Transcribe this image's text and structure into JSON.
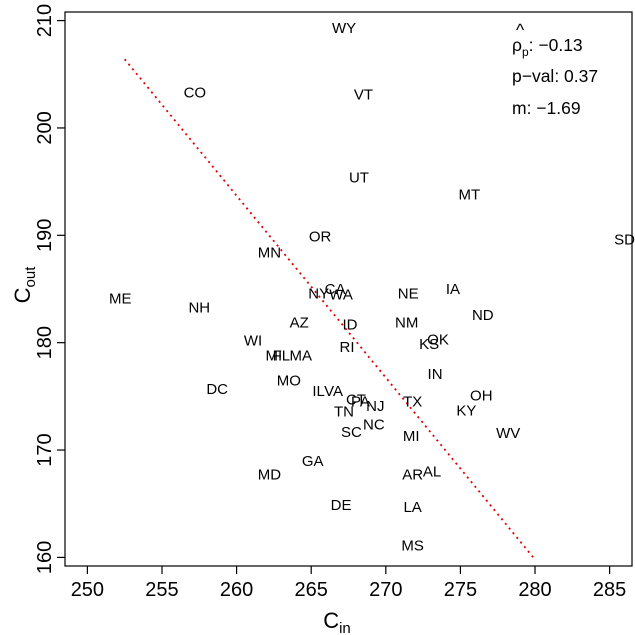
{
  "chart_data": {
    "type": "scatter",
    "xlabel": {
      "main": "C",
      "sub": "in"
    },
    "ylabel": {
      "main": "C",
      "sub": "out"
    },
    "xlim": [
      248.5,
      286.5
    ],
    "ylim": [
      159.2,
      210.8
    ],
    "xticks": [
      "250",
      "255",
      "260",
      "265",
      "270",
      "275",
      "280",
      "285"
    ],
    "yticks": [
      "160",
      "170",
      "180",
      "190",
      "200",
      "210"
    ],
    "stats": {
      "rho_symbol": "ρ",
      "rho_sub": "p",
      "rho_label": ": −0.13",
      "pval_label": "p−val: 0.37",
      "m_label": "m:  −1.69"
    },
    "regression": {
      "x1": 252.5,
      "y1": 206.4,
      "x2": 280.0,
      "y2": 159.8,
      "color": "#dd0000"
    },
    "points": [
      {
        "label": "WY",
        "x": 267.2,
        "y": 209.3
      },
      {
        "label": "CO",
        "x": 257.2,
        "y": 203.3
      },
      {
        "label": "VT",
        "x": 268.5,
        "y": 203.1
      },
      {
        "label": "UT",
        "x": 268.2,
        "y": 195.4
      },
      {
        "label": "MT",
        "x": 275.6,
        "y": 193.8
      },
      {
        "label": "SD",
        "x": 286.0,
        "y": 189.6
      },
      {
        "label": "OR",
        "x": 265.6,
        "y": 189.9
      },
      {
        "label": "MN",
        "x": 262.2,
        "y": 188.4
      },
      {
        "label": "ME",
        "x": 252.2,
        "y": 184.1
      },
      {
        "label": "NH",
        "x": 257.5,
        "y": 183.3
      },
      {
        "label": "NY",
        "x": 265.5,
        "y": 184.6
      },
      {
        "label": "WA",
        "x": 267.0,
        "y": 184.5
      },
      {
        "label": "CA",
        "x": 266.6,
        "y": 185.0
      },
      {
        "label": "NE",
        "x": 271.5,
        "y": 184.6
      },
      {
        "label": "IA",
        "x": 274.5,
        "y": 185.0
      },
      {
        "label": "ND",
        "x": 276.5,
        "y": 182.6
      },
      {
        "label": "AZ",
        "x": 264.2,
        "y": 181.9
      },
      {
        "label": "ID",
        "x": 267.6,
        "y": 181.7
      },
      {
        "label": "NM",
        "x": 271.4,
        "y": 181.9
      },
      {
        "label": "OK",
        "x": 273.5,
        "y": 180.3
      },
      {
        "label": "KS",
        "x": 272.9,
        "y": 179.9
      },
      {
        "label": "WI",
        "x": 261.1,
        "y": 180.2
      },
      {
        "label": "RI",
        "x": 267.4,
        "y": 179.6
      },
      {
        "label": "MI",
        "x": 262.5,
        "y": 178.8
      },
      {
        "label": "FL",
        "x": 263.0,
        "y": 178.8
      },
      {
        "label": "MA",
        "x": 264.3,
        "y": 178.8
      },
      {
        "label": "IN",
        "x": 273.3,
        "y": 177.1
      },
      {
        "label": "MO",
        "x": 263.5,
        "y": 176.5
      },
      {
        "label": "DC",
        "x": 258.7,
        "y": 175.7
      },
      {
        "label": "IL",
        "x": 265.5,
        "y": 175.5
      },
      {
        "label": "VA",
        "x": 266.5,
        "y": 175.5
      },
      {
        "label": "OH",
        "x": 276.4,
        "y": 175.1
      },
      {
        "label": "PA",
        "x": 268.3,
        "y": 174.5
      },
      {
        "label": "CT",
        "x": 268.0,
        "y": 174.7
      },
      {
        "label": "NJ",
        "x": 269.3,
        "y": 174.1
      },
      {
        "label": "TX",
        "x": 271.8,
        "y": 174.5
      },
      {
        "label": "KY",
        "x": 275.4,
        "y": 173.7
      },
      {
        "label": "TN",
        "x": 267.2,
        "y": 173.6
      },
      {
        "label": "NC",
        "x": 269.2,
        "y": 172.4
      },
      {
        "label": "SC",
        "x": 267.7,
        "y": 171.7
      },
      {
        "label": "MI",
        "x": 271.7,
        "y": 171.3
      },
      {
        "label": "WV",
        "x": 278.2,
        "y": 171.6
      },
      {
        "label": "GA",
        "x": 265.1,
        "y": 169.0
      },
      {
        "label": "MD",
        "x": 262.2,
        "y": 167.7
      },
      {
        "label": "AR",
        "x": 271.8,
        "y": 167.7
      },
      {
        "label": "AL",
        "x": 273.1,
        "y": 168.0
      },
      {
        "label": "DE",
        "x": 267.0,
        "y": 164.9
      },
      {
        "label": "LA",
        "x": 271.8,
        "y": 164.7
      },
      {
        "label": "MS",
        "x": 271.8,
        "y": 161.1
      }
    ]
  }
}
